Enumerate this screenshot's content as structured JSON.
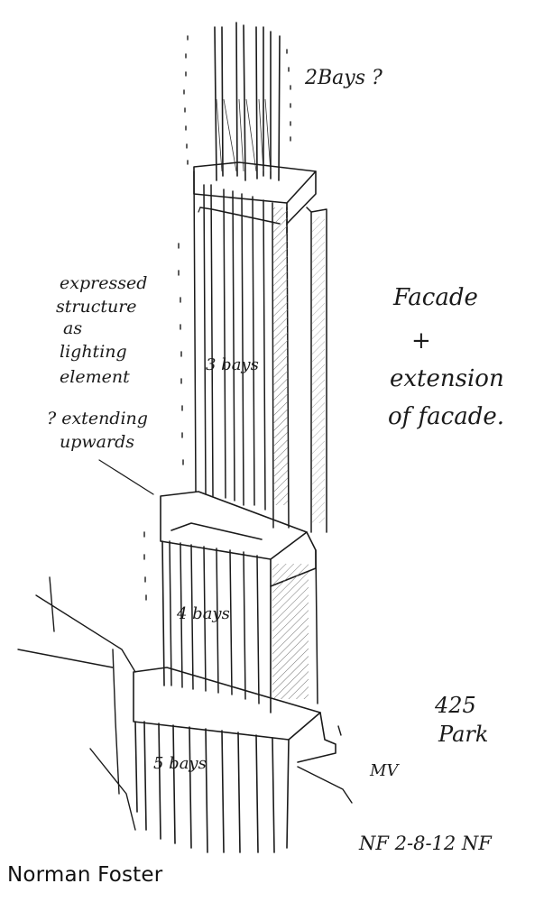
{
  "notes": {
    "top_bays": "2Bays ?",
    "facade_1": "Facade",
    "facade_plus": "+",
    "facade_2": "extension",
    "facade_3": "of facade.",
    "left_1": "expressed",
    "left_2": "structure",
    "left_3": "as",
    "left_4": "lighting",
    "left_5": "element",
    "left_6": "? extending",
    "left_7": "upwards",
    "mid_bays": "3 bays",
    "lower_bays": "4 bays",
    "base_bays": "5 bays",
    "address_1": "425",
    "address_2": "Park",
    "mv": "MV",
    "signature": "NF  2-8-12 NF"
  },
  "caption": "Norman Foster",
  "colors": {
    "ink": "#1a1a1a",
    "paper": "#ffffff"
  }
}
